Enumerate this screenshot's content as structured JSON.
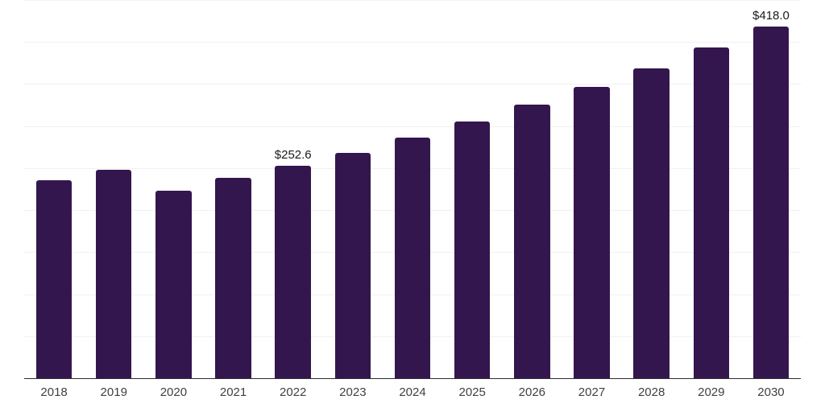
{
  "chart_data": {
    "type": "bar",
    "categories": [
      "2018",
      "2019",
      "2020",
      "2021",
      "2022",
      "2023",
      "2024",
      "2025",
      "2026",
      "2027",
      "2028",
      "2029",
      "2030"
    ],
    "values": [
      236.0,
      248.4,
      223.2,
      238.2,
      252.6,
      268.0,
      286.2,
      305.1,
      325.3,
      346.4,
      368.7,
      393.3,
      418.0
    ],
    "bar_labels": [
      "",
      "",
      "",
      "",
      "$252.6",
      "",
      "",
      "",
      "",
      "",
      "",
      "",
      "$418.0"
    ],
    "title": "",
    "xlabel": "",
    "ylabel": "",
    "ylim": [
      0,
      450
    ],
    "grid_interval": 50,
    "grid": "horizontal-only",
    "legend": "none",
    "value_prefix": "$",
    "colors": {
      "bar_fill": "#34164E",
      "gridline": "#F1F1F1",
      "axis_line": "#2E2E2E",
      "tick_label": "#404040",
      "data_label": "#1A1A1A",
      "background": "#FFFFFF"
    }
  }
}
